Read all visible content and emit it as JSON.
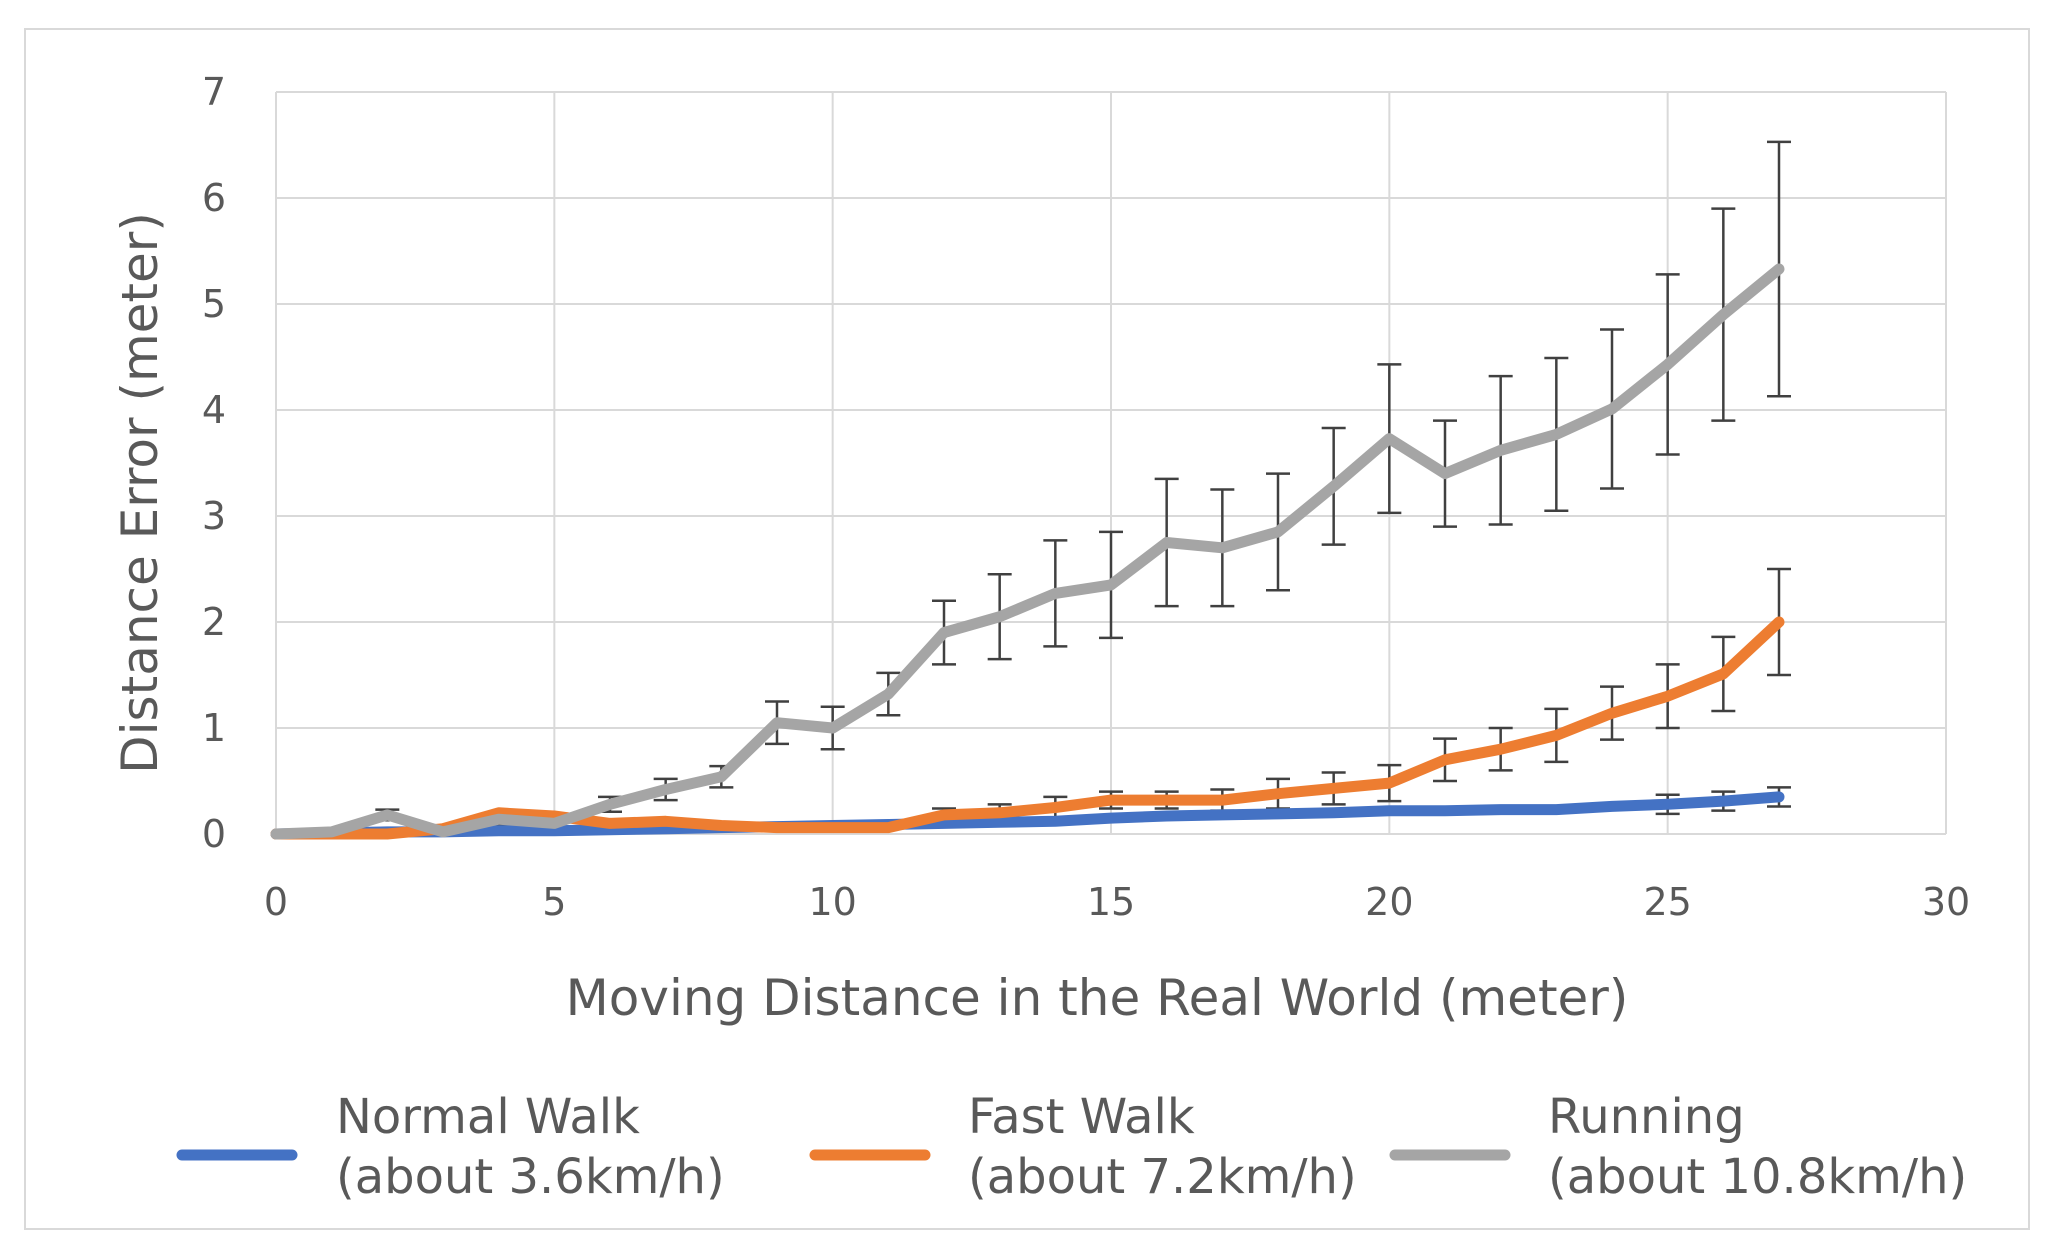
{
  "chart_data": {
    "type": "line",
    "title": "",
    "xlabel": "Moving Distance in the Real World (meter)",
    "ylabel": "Distance Error (meter)",
    "xlim": [
      0,
      30
    ],
    "ylim": [
      0,
      7
    ],
    "x_ticks": [
      "0",
      "5",
      "10",
      "15",
      "20",
      "25",
      "30"
    ],
    "y_ticks": [
      "0",
      "1",
      "2",
      "3",
      "4",
      "5",
      "6",
      "7"
    ],
    "grid": true,
    "legend_position": "bottom",
    "x": [
      0,
      1,
      2,
      3,
      4,
      5,
      6,
      7,
      8,
      9,
      10,
      11,
      12,
      13,
      14,
      15,
      16,
      17,
      18,
      19,
      20,
      21,
      22,
      23,
      24,
      25,
      26,
      27
    ],
    "series": [
      {
        "name": "Normal Walk",
        "name_detail": "(about 3.6km/h)",
        "color": "#4472C4",
        "values": [
          0,
          0.01,
          0.02,
          0.02,
          0.03,
          0.03,
          0.04,
          0.05,
          0.06,
          0.07,
          0.08,
          0.09,
          0.1,
          0.11,
          0.12,
          0.15,
          0.17,
          0.18,
          0.19,
          0.2,
          0.22,
          0.22,
          0.23,
          0.23,
          0.26,
          0.28,
          0.31,
          0.35
        ],
        "errors": [
          0,
          0,
          0,
          0,
          0,
          0,
          0,
          0,
          0,
          0,
          0,
          0,
          0,
          0,
          0,
          0,
          0,
          0,
          0,
          0,
          0,
          0,
          0,
          0,
          0,
          0.09,
          0.09,
          0.09
        ]
      },
      {
        "name": "Fast Walk",
        "name_detail": "(about 7.2km/h)",
        "color": "#ED7D31",
        "values": [
          0,
          0,
          0,
          0.05,
          0.2,
          0.17,
          0.1,
          0.12,
          0.08,
          0.06,
          0.06,
          0.06,
          0.18,
          0.2,
          0.25,
          0.32,
          0.32,
          0.32,
          0.38,
          0.43,
          0.48,
          0.7,
          0.8,
          0.93,
          1.14,
          1.3,
          1.51,
          2.0
        ],
        "errors": [
          0,
          0,
          0,
          0,
          0,
          0,
          0,
          0,
          0,
          0,
          0,
          0,
          0.06,
          0.08,
          0.1,
          0.08,
          0.08,
          0.1,
          0.14,
          0.15,
          0.17,
          0.2,
          0.2,
          0.25,
          0.25,
          0.3,
          0.35,
          0.5
        ]
      },
      {
        "name": "Running",
        "name_detail": "(about 10.8km/h)",
        "color": "#A5A5A5",
        "values": [
          0,
          0.02,
          0.18,
          0.02,
          0.14,
          0.1,
          0.28,
          0.42,
          0.54,
          1.05,
          1.0,
          1.32,
          1.9,
          2.05,
          2.27,
          2.35,
          2.75,
          2.7,
          2.85,
          3.28,
          3.73,
          3.4,
          3.62,
          3.77,
          4.01,
          4.43,
          4.9,
          5.33
        ],
        "errors": [
          0,
          0,
          0.05,
          0,
          0.05,
          0,
          0.07,
          0.1,
          0.1,
          0.2,
          0.2,
          0.2,
          0.3,
          0.4,
          0.5,
          0.5,
          0.6,
          0.55,
          0.55,
          0.55,
          0.7,
          0.5,
          0.7,
          0.72,
          0.75,
          0.85,
          1.0,
          1.2
        ]
      }
    ]
  }
}
